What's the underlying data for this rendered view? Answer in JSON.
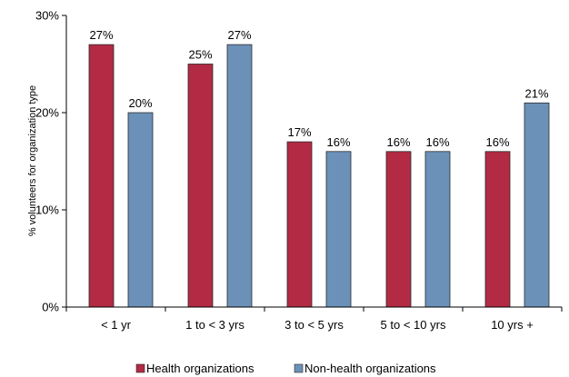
{
  "chart_data": {
    "type": "bar",
    "title": "",
    "xlabel": "",
    "ylabel": "% volunteers for organization type",
    "ylim": [
      0,
      30
    ],
    "yticks": [
      "0%",
      "10%",
      "20%",
      "30%"
    ],
    "ytick_values": [
      0,
      10,
      20,
      30
    ],
    "grid": false,
    "legend_position": "bottom",
    "categories": [
      "< 1 yr",
      "1 to < 3 yrs",
      "3 to < 5 yrs",
      "5 to < 10 yrs",
      "10 yrs +"
    ],
    "series": [
      {
        "name": "Health organizations",
        "color": "#B22A43",
        "values": [
          27,
          25,
          17,
          16,
          16
        ],
        "labels": [
          "27%",
          "25%",
          "17%",
          "16%",
          "16%"
        ]
      },
      {
        "name": "Non-health organizations",
        "color": "#6B91B8",
        "values": [
          20,
          27,
          16,
          16,
          21
        ],
        "labels": [
          "20%",
          "27%",
          "16%",
          "16%",
          "21%"
        ]
      }
    ]
  }
}
